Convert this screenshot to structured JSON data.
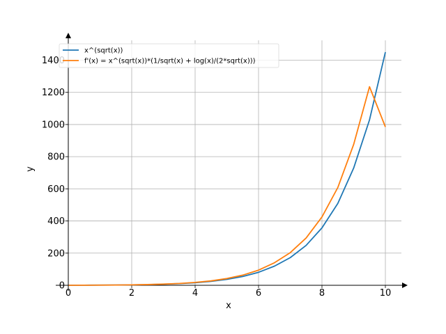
{
  "chart_data": {
    "type": "line",
    "xlabel": "x",
    "ylabel": "y",
    "xlim": [
      -0.2,
      10.5
    ],
    "ylim": [
      -10,
      1510
    ],
    "xticks": [
      0,
      2,
      4,
      6,
      8,
      10
    ],
    "yticks": [
      0,
      200,
      400,
      600,
      800,
      1000,
      1200,
      1400
    ],
    "grid": true,
    "legend_position": "upper-left",
    "series": [
      {
        "name": "x^(sqrt(x))",
        "color": "#1f77b4",
        "x": [
          0.01,
          0.5,
          1,
          1.5,
          2,
          2.5,
          3,
          3.5,
          4,
          4.5,
          5,
          5.5,
          6,
          6.5,
          7,
          7.5,
          8,
          8.5,
          9,
          9.5,
          10
        ],
        "y": [
          0.63,
          0.61,
          1.0,
          1.64,
          2.67,
          4.26,
          6.71,
          10.4,
          16.0,
          24.2,
          36.6,
          54.5,
          80.8,
          119,
          172,
          248,
          357,
          509,
          729,
          1029,
          1450
        ]
      },
      {
        "name": "f'(x) = x^(sqrt(x))*(1/sqrt(x) + log(x)/(2*sqrt(x)))",
        "color": "#ff7f0e",
        "x": [
          0.01,
          0.5,
          1,
          1.5,
          2,
          2.5,
          3,
          3.5,
          4,
          4.5,
          5,
          5.5,
          6,
          6.5,
          7,
          7.5,
          8,
          8.5,
          9,
          9.5,
          10
        ],
        "y": [
          0.0,
          0.49,
          1.0,
          1.65,
          2.74,
          4.5,
          7.25,
          11.4,
          17.9,
          27.3,
          42.0,
          63.0,
          94.3,
          140,
          203,
          294,
          425,
          608,
          876,
          1235,
          985
        ]
      }
    ]
  }
}
